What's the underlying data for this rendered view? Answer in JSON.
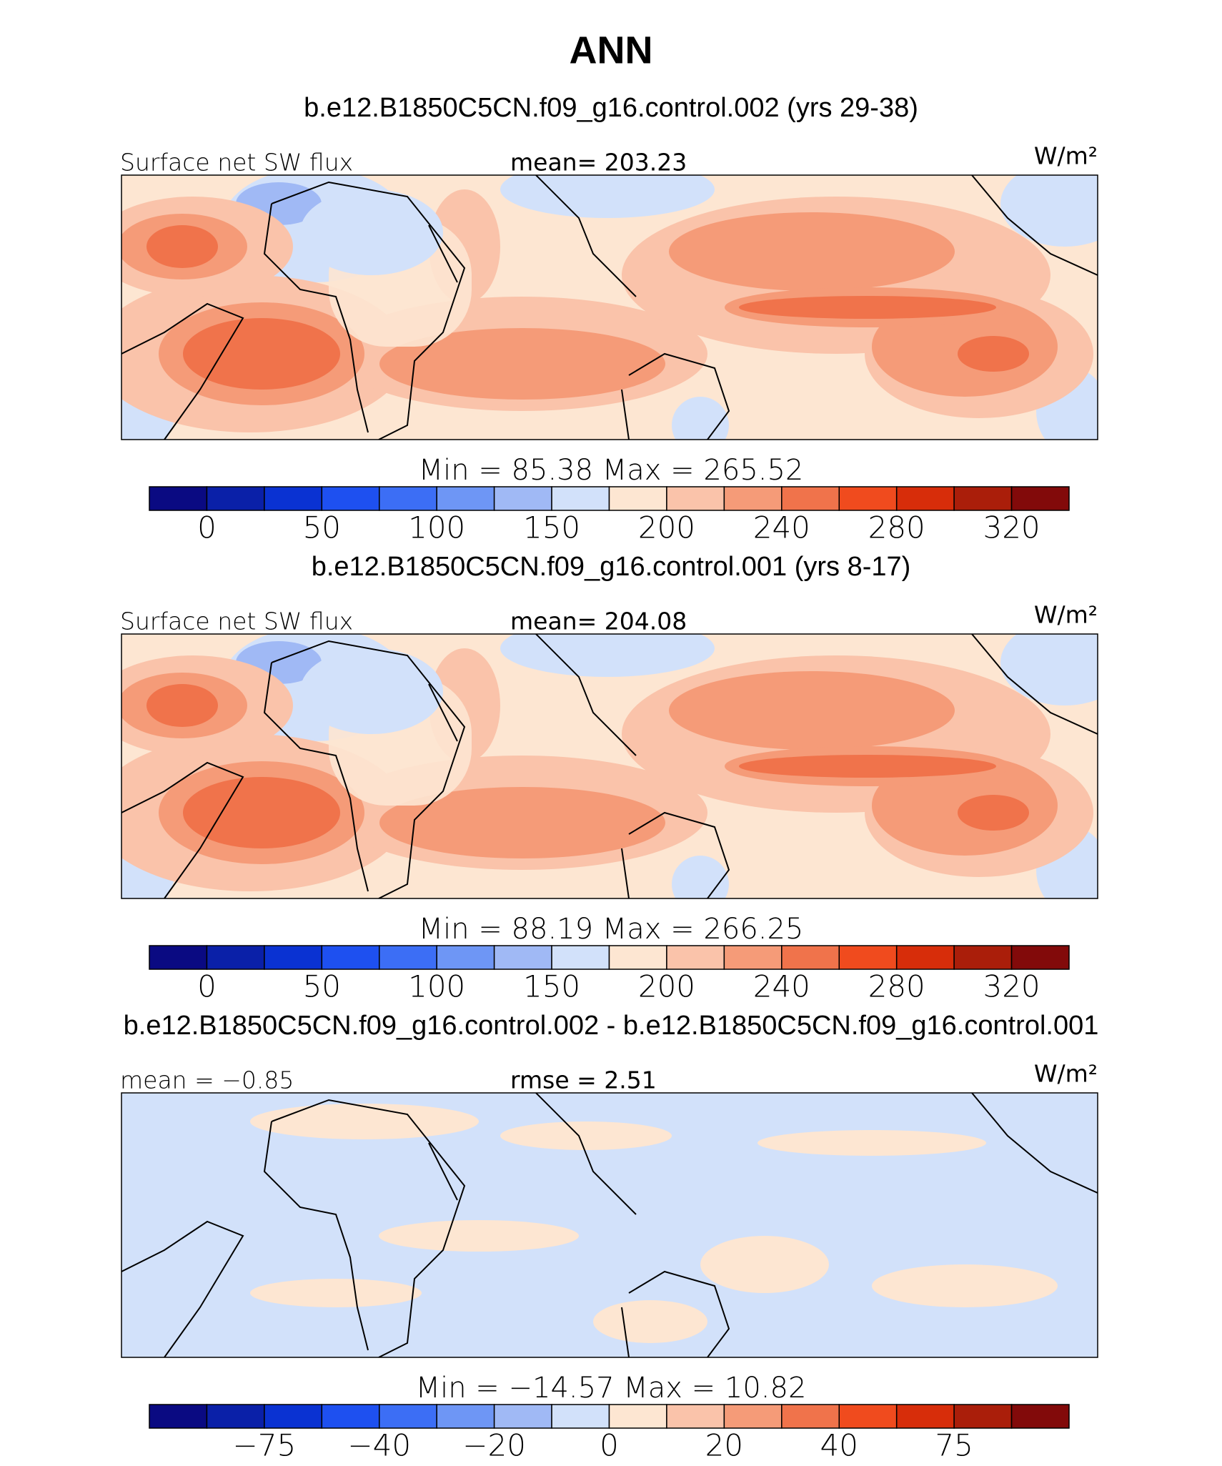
{
  "title": "ANN",
  "colorbar_colors": [
    "#0a0a82",
    "#0a20a8",
    "#0a32d2",
    "#1e50f0",
    "#3c6ef5",
    "#6e96f5",
    "#a0b9f5",
    "#d2e1fa",
    "#fde6d2",
    "#fac3aa",
    "#f59b78",
    "#f0734b",
    "#f04b1e",
    "#d72d0a",
    "#aa1e0a",
    "#820a0a"
  ],
  "panels": [
    {
      "title": "b.e12.B1850C5CN.f09_g16.control.002 (yrs 29-38)",
      "left_label": "Surface net SW flux",
      "center_label": "mean= 203.23",
      "units": "W/m²",
      "stats": "Min = 85.38 Max = 265.52",
      "colorbar_ticks": [
        "0",
        "50",
        "100",
        "150",
        "200",
        "240",
        "280",
        "320"
      ]
    },
    {
      "title": "b.e12.B1850C5CN.f09_g16.control.001 (yrs 8-17)",
      "left_label": "Surface net SW flux",
      "center_label": "mean= 204.08",
      "units": "W/m²",
      "stats": "Min = 88.19 Max = 266.25",
      "colorbar_ticks": [
        "0",
        "50",
        "100",
        "150",
        "200",
        "240",
        "280",
        "320"
      ]
    },
    {
      "title": "b.e12.B1850C5CN.f09_g16.control.002 - b.e12.B1850C5CN.f09_g16.control.001",
      "left_label": "mean = −0.85",
      "center_label": "rmse = 2.51",
      "units": "W/m²",
      "stats": "Min = −14.57 Max = 10.82",
      "colorbar_ticks": [
        "−75",
        "−40",
        "−20",
        "0",
        "20",
        "40",
        "75"
      ]
    }
  ]
}
